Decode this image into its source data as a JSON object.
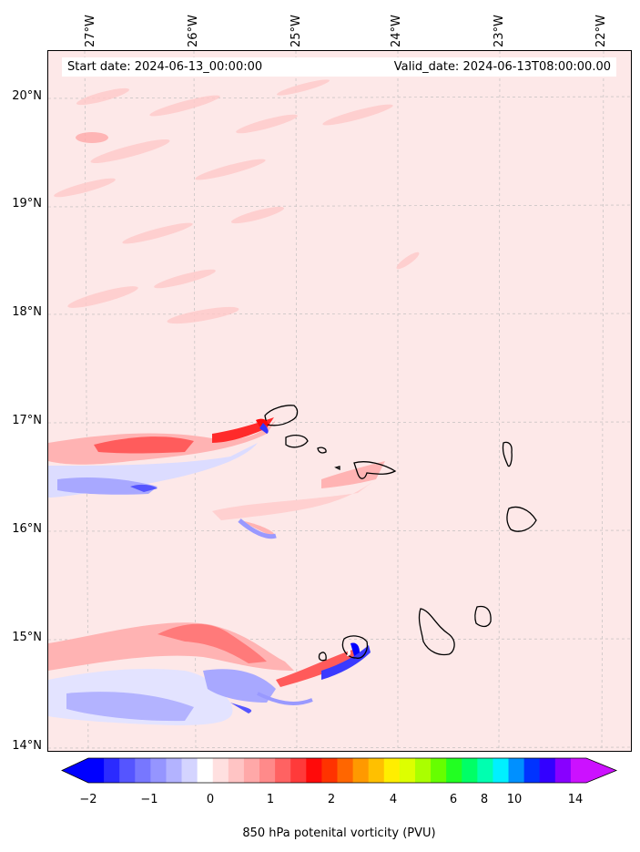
{
  "map": {
    "start_label": "Start date: 2024-06-13_00:00:00",
    "valid_label": "Valid_date: 2024-06-13T08:00:00.00",
    "lon_labels": [
      "27°W",
      "26°W",
      "25°W",
      "24°W",
      "23°W",
      "22°W"
    ],
    "lat_labels": [
      "20°N",
      "19°N",
      "18°N",
      "17°N",
      "16°N",
      "15°N",
      "14°N"
    ],
    "background_color": "#fde8e8"
  },
  "colorbar": {
    "title": "850 hPa potenital vorticity (PVU)",
    "tick_labels": [
      "−2",
      "−1",
      "0",
      "1",
      "2",
      "4",
      "6",
      "8",
      "10",
      "14"
    ],
    "colors": [
      "#0000ff",
      "#2b2bff",
      "#5555ff",
      "#7777ff",
      "#9595ff",
      "#b3b3ff",
      "#d4d4ff",
      "#ffffff",
      "#ffe0e0",
      "#ffc4c4",
      "#ffa8a8",
      "#ff8a8a",
      "#ff6262",
      "#ff3a3a",
      "#ff0a0a",
      "#ff3300",
      "#ff6600",
      "#ff9900",
      "#ffc000",
      "#ffee00",
      "#ddff00",
      "#aaff00",
      "#66ff00",
      "#22ff22",
      "#00ff66",
      "#00ffb0",
      "#00f0ff",
      "#0090ff",
      "#0033ff",
      "#3300ff",
      "#8800ff",
      "#cc11ff"
    ]
  }
}
